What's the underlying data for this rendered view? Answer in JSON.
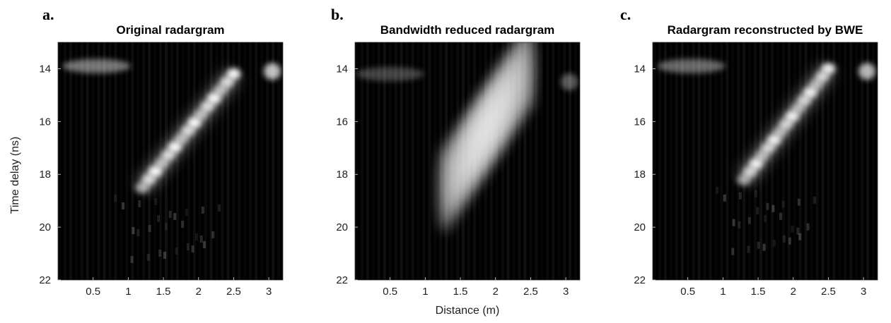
{
  "chart_data": [
    {
      "type": "heatmap",
      "panel_letter": "a.",
      "title": "Original radargram",
      "xlabel": "",
      "ylabel": "Time delay (ns)",
      "x_ticks": [
        "0.5",
        "1",
        "1.5",
        "2",
        "2.5",
        "3"
      ],
      "y_ticks": [
        "14",
        "16",
        "18",
        "20",
        "22"
      ],
      "xlim": [
        0.0,
        3.2
      ],
      "ylim": [
        22,
        13
      ],
      "colormap": "gray",
      "features": [
        {
          "kind": "reflection",
          "x_start": 1.2,
          "y_start": 18.5,
          "x_end": 2.5,
          "y_end": 14.2,
          "intensity": 0.95
        },
        {
          "kind": "blob",
          "x": 0.55,
          "y": 13.9,
          "intensity": 0.45
        },
        {
          "kind": "blob",
          "x": 3.05,
          "y": 14.1,
          "intensity": 0.75
        }
      ]
    },
    {
      "type": "heatmap",
      "panel_letter": "b.",
      "title": "Bandwidth reduced radargram",
      "xlabel": "Distance (m)",
      "ylabel": "",
      "x_ticks": [
        "0.5",
        "1",
        "1.5",
        "2",
        "2.5",
        "3"
      ],
      "y_ticks": [
        "14",
        "16",
        "18",
        "20",
        "22"
      ],
      "xlim": [
        0.0,
        3.2
      ],
      "ylim": [
        22,
        13
      ],
      "colormap": "gray",
      "features": [
        {
          "kind": "reflection",
          "x_start": 1.3,
          "y_start": 18.5,
          "x_end": 2.45,
          "y_end": 14.0,
          "intensity": 1.0
        },
        {
          "kind": "blob",
          "x": 0.5,
          "y": 14.2,
          "intensity": 0.25
        },
        {
          "kind": "blob",
          "x": 3.05,
          "y": 14.5,
          "intensity": 0.35
        }
      ]
    },
    {
      "type": "heatmap",
      "panel_letter": "c.",
      "title": "Radargram reconstructed by BWE",
      "xlabel": "",
      "ylabel": "",
      "x_ticks": [
        "0.5",
        "1",
        "1.5",
        "2",
        "2.5",
        "3"
      ],
      "y_ticks": [
        "14",
        "16",
        "18",
        "20",
        "22"
      ],
      "xlim": [
        0.0,
        3.2
      ],
      "ylim": [
        22,
        13
      ],
      "colormap": "gray",
      "features": [
        {
          "kind": "reflection",
          "x_start": 1.3,
          "y_start": 18.2,
          "x_end": 2.5,
          "y_end": 14.0,
          "intensity": 0.9
        },
        {
          "kind": "blob",
          "x": 0.55,
          "y": 13.9,
          "intensity": 0.4
        },
        {
          "kind": "blob",
          "x": 3.05,
          "y": 14.1,
          "intensity": 0.7
        }
      ]
    }
  ]
}
